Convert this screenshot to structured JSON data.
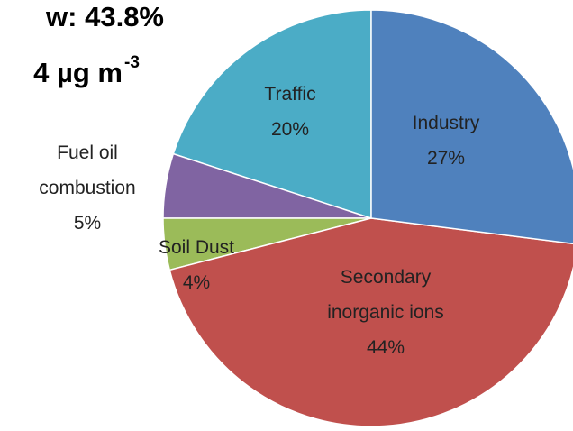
{
  "chart_data": {
    "type": "pie",
    "annotations": [
      {
        "text": "w: 43.8%"
      },
      {
        "text": "4 µg m",
        "sup": "-3"
      }
    ],
    "categories": [
      "Industry",
      "Secondary inorganic ions",
      "Soil Dust",
      "Fuel oil combustion",
      "Traffic"
    ],
    "values": [
      27,
      44,
      4,
      5,
      20
    ],
    "value_labels": [
      "27%",
      "44%",
      "4%",
      "5%",
      "20%"
    ],
    "colors": [
      "#4f81bd",
      "#c0504d",
      "#9bbb59",
      "#8064a2",
      "#4bacc6"
    ]
  }
}
